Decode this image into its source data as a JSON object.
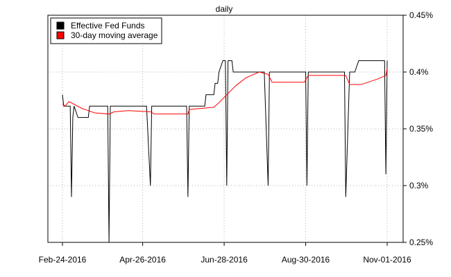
{
  "chart_data": {
    "type": "line",
    "title": "daily",
    "xlabel": "",
    "ylabel": "",
    "ylim": [
      0.25,
      0.45
    ],
    "y_ticks": [
      "0.25%",
      "0.3%",
      "0.35%",
      "0.4%",
      "0.45%"
    ],
    "y_tick_values": [
      0.25,
      0.3,
      0.35,
      0.4,
      0.45
    ],
    "y_axis_side": "right",
    "x_tick_labels": [
      "Feb-24-2016",
      "Apr-26-2016",
      "Jun-28-2016",
      "Aug-30-2016",
      "Nov-01-2016"
    ],
    "x_tick_dates": [
      "2016-02-24",
      "2016-04-26",
      "2016-06-28",
      "2016-08-30",
      "2016-11-01"
    ],
    "xlim": [
      "2016-02-24",
      "2016-11-01"
    ],
    "grid": true,
    "legend_position": "top-left",
    "series": [
      {
        "name": "Effective Fed Funds",
        "color": "#000000",
        "points": [
          [
            "2016-02-24",
            0.38
          ],
          [
            "2016-02-25",
            0.37
          ],
          [
            "2016-02-29",
            0.37
          ],
          [
            "2016-03-01",
            0.37
          ],
          [
            "2016-03-02",
            0.29
          ],
          [
            "2016-03-03",
            0.36
          ],
          [
            "2016-03-04",
            0.37
          ],
          [
            "2016-03-07",
            0.36
          ],
          [
            "2016-03-15",
            0.36
          ],
          [
            "2016-03-16",
            0.37
          ],
          [
            "2016-03-30",
            0.37
          ],
          [
            "2016-03-31",
            0.25
          ],
          [
            "2016-04-01",
            0.37
          ],
          [
            "2016-04-29",
            0.37
          ],
          [
            "2016-05-02",
            0.3
          ],
          [
            "2016-05-03",
            0.37
          ],
          [
            "2016-05-30",
            0.37
          ],
          [
            "2016-05-31",
            0.29
          ],
          [
            "2016-06-01",
            0.37
          ],
          [
            "2016-06-13",
            0.37
          ],
          [
            "2016-06-14",
            0.38
          ],
          [
            "2016-06-20",
            0.38
          ],
          [
            "2016-06-21",
            0.39
          ],
          [
            "2016-06-23",
            0.39
          ],
          [
            "2016-06-24",
            0.4
          ],
          [
            "2016-06-27",
            0.41
          ],
          [
            "2016-06-29",
            0.41
          ],
          [
            "2016-06-30",
            0.3
          ],
          [
            "2016-07-01",
            0.41
          ],
          [
            "2016-07-04",
            0.41
          ],
          [
            "2016-07-05",
            0.4
          ],
          [
            "2016-07-29",
            0.4
          ],
          [
            "2016-08-01",
            0.3
          ],
          [
            "2016-08-02",
            0.4
          ],
          [
            "2016-08-30",
            0.4
          ],
          [
            "2016-08-31",
            0.3
          ],
          [
            "2016-09-01",
            0.4
          ],
          [
            "2016-09-29",
            0.4
          ],
          [
            "2016-09-30",
            0.29
          ],
          [
            "2016-10-03",
            0.4
          ],
          [
            "2016-10-07",
            0.4
          ],
          [
            "2016-10-10",
            0.41
          ],
          [
            "2016-10-30",
            0.41
          ],
          [
            "2016-10-31",
            0.31
          ],
          [
            "2016-11-01",
            0.41
          ]
        ]
      },
      {
        "name": "30-day moving average",
        "color": "#ff0000",
        "points": [
          [
            "2016-02-24",
            0.372
          ],
          [
            "2016-02-26",
            0.37
          ],
          [
            "2016-02-29",
            0.374
          ],
          [
            "2016-03-10",
            0.368
          ],
          [
            "2016-03-20",
            0.364
          ],
          [
            "2016-03-31",
            0.363
          ],
          [
            "2016-04-04",
            0.365
          ],
          [
            "2016-04-15",
            0.366
          ],
          [
            "2016-05-02",
            0.365
          ],
          [
            "2016-05-05",
            0.363
          ],
          [
            "2016-05-31",
            0.363
          ],
          [
            "2016-06-01",
            0.367
          ],
          [
            "2016-06-20",
            0.369
          ],
          [
            "2016-06-24",
            0.373
          ],
          [
            "2016-06-30",
            0.38
          ],
          [
            "2016-07-07",
            0.388
          ],
          [
            "2016-07-15",
            0.395
          ],
          [
            "2016-07-25",
            0.4
          ],
          [
            "2016-08-01",
            0.398
          ],
          [
            "2016-08-04",
            0.391
          ],
          [
            "2016-08-29",
            0.391
          ],
          [
            "2016-09-01",
            0.397
          ],
          [
            "2016-09-30",
            0.397
          ],
          [
            "2016-10-03",
            0.389
          ],
          [
            "2016-10-12",
            0.389
          ],
          [
            "2016-10-25",
            0.394
          ],
          [
            "2016-10-31",
            0.397
          ],
          [
            "2016-11-01",
            0.403
          ]
        ]
      }
    ]
  }
}
